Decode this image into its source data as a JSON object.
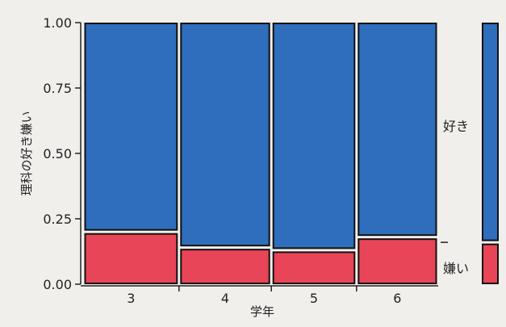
{
  "chart_data": {
    "type": "mosaic",
    "title": "",
    "xlabel": "学年",
    "ylabel": "理科の好き嫌い",
    "ylim": [
      0,
      1
    ],
    "yticks": [
      "0.00",
      "0.25",
      "0.50",
      "0.75",
      "1.00"
    ],
    "categories": [
      "3",
      "4",
      "5",
      "6"
    ],
    "column_weights": [
      0.27,
      0.26,
      0.24,
      0.23
    ],
    "series": [
      {
        "name": "嫌い",
        "values": [
          0.2,
          0.14,
          0.13,
          0.18
        ]
      },
      {
        "name": "好き",
        "values": [
          0.8,
          0.86,
          0.87,
          0.82
        ]
      }
    ],
    "overall": {
      "嫌い": 0.16,
      "好き": 0.84
    },
    "legend_position": "right"
  },
  "colors": {
    "like": "#2f6ebc",
    "dislike": "#e84558",
    "border": "#111111"
  }
}
